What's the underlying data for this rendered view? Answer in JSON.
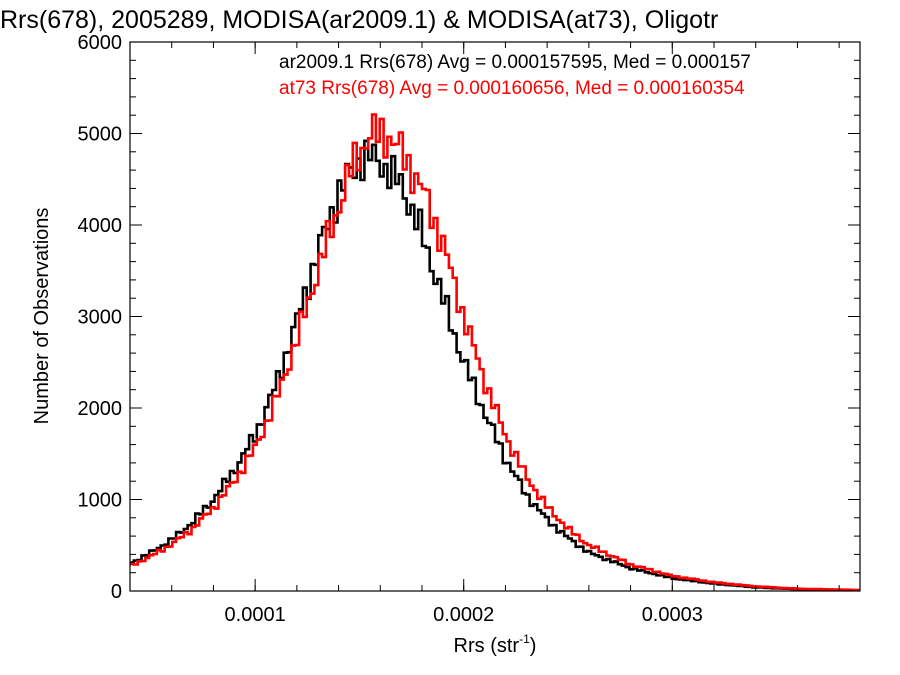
{
  "chart_data": {
    "type": "histogram",
    "title": "Rrs(678), 2005289, MODISA(ar2009.1) & MODISA(at73), Oligotr",
    "xlabel": "Rrs (str",
    "xlabel_sup": "-1",
    "xlabel_end": ")",
    "ylabel": "Number of Observations",
    "xlim": [
      4e-05,
      0.00039
    ],
    "ylim": [
      0,
      6000
    ],
    "x_ticks": [
      0.0001,
      0.0002,
      0.0003
    ],
    "x_tick_labels": [
      "0.0001",
      "0.0002",
      "0.0003"
    ],
    "y_ticks": [
      0,
      1000,
      2000,
      3000,
      4000,
      5000,
      6000
    ],
    "y_tick_labels": [
      "0",
      "1000",
      "2000",
      "3000",
      "4000",
      "5000",
      "6000"
    ],
    "legend_position": "top-right",
    "legend": [
      "ar2009.1 Rrs(678) Avg = 0.000157595, Med = 0.000157",
      "at73 Rrs(678) Avg = 0.000160656, Med = 0.000160354"
    ],
    "series": [
      {
        "color": "#000000",
        "x": [
          4e-05,
          5e-05,
          6e-05,
          7e-05,
          8e-05,
          9e-05,
          0.0001,
          0.00011,
          0.00012,
          0.00013,
          0.00014,
          0.000145,
          0.00015,
          0.000155,
          0.00016,
          0.000165,
          0.00017,
          0.00018,
          0.00019,
          0.0002,
          0.00021,
          0.00022,
          0.00023,
          0.00024,
          0.00025,
          0.00026,
          0.00028,
          0.0003,
          0.00032,
          0.00034,
          0.00036,
          0.00039
        ],
        "values": [
          300,
          420,
          560,
          750,
          1000,
          1320,
          1700,
          2250,
          2950,
          3700,
          4350,
          4550,
          4700,
          4750,
          4700,
          4550,
          4450,
          3900,
          3200,
          2500,
          1950,
          1450,
          1050,
          780,
          580,
          420,
          250,
          140,
          80,
          40,
          20,
          8
        ]
      },
      {
        "color": "#ff0000",
        "x": [
          4e-05,
          5e-05,
          6e-05,
          7e-05,
          8e-05,
          9e-05,
          0.0001,
          0.00011,
          0.00012,
          0.00013,
          0.00014,
          0.000145,
          0.00015,
          0.000155,
          0.00016,
          0.000165,
          0.00017,
          0.00018,
          0.00019,
          0.0002,
          0.00021,
          0.00022,
          0.00023,
          0.00024,
          0.00025,
          0.00026,
          0.00028,
          0.0003,
          0.00032,
          0.00034,
          0.00036,
          0.00039
        ],
        "values": [
          270,
          380,
          510,
          680,
          910,
          1200,
          1560,
          2080,
          2750,
          3500,
          4200,
          4550,
          4800,
          4980,
          5000,
          4950,
          4800,
          4400,
          3800,
          3000,
          2300,
          1700,
          1250,
          920,
          680,
          500,
          290,
          165,
          95,
          50,
          25,
          10
        ]
      }
    ]
  }
}
